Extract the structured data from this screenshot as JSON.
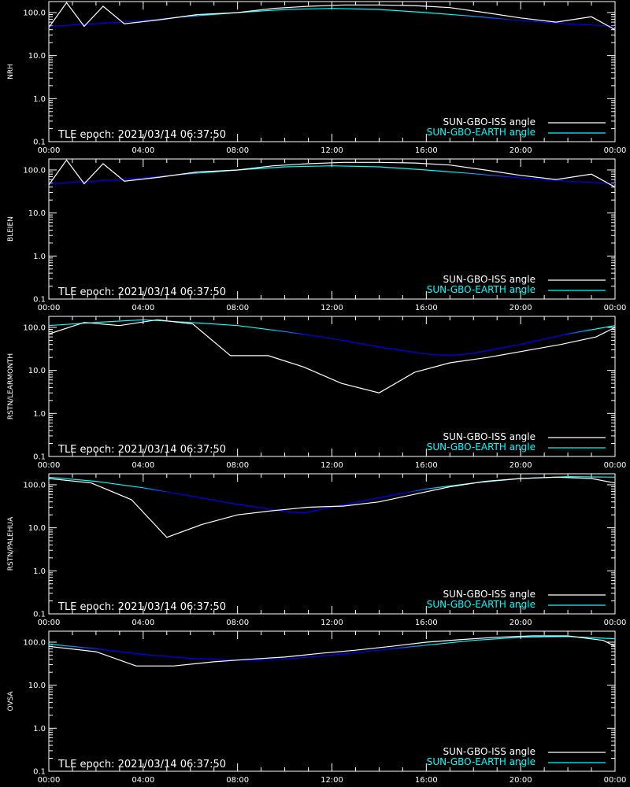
{
  "figure": {
    "epoch_label": "TLE epoch: 2021/03/14 06:37:50",
    "x_tick_labels": [
      "00:00",
      "04:00",
      "08:00",
      "12:00",
      "16:00",
      "20:00",
      "00:00"
    ],
    "y_tick_labels": [
      "100.0",
      "10.0",
      "1.0",
      "0.1"
    ],
    "colors": {
      "background": "#000000",
      "axes": "#ffffff",
      "iss": "#ffffff",
      "earth_legend": "#00ffff",
      "earth_line_low": "#0000ff",
      "earth_line_high": "#00ffff"
    }
  },
  "chart_data": [
    {
      "type": "line",
      "ylabel": "NRH",
      "xlim": [
        0,
        24
      ],
      "ylim": [
        0.1,
        180
      ],
      "yscale": "log",
      "legend_position": "bottom-right",
      "series": [
        {
          "name": "SUN-GBO-ISS angle",
          "color": "#ffffff",
          "x": [
            0,
            0.75,
            1.5,
            2.3,
            3.2,
            4.7,
            6.3,
            8,
            9.5,
            11,
            12.5,
            14,
            15.5,
            17,
            18.5,
            20,
            21.5,
            23,
            24
          ],
          "y": [
            45,
            170,
            48,
            140,
            55,
            68,
            90,
            100,
            125,
            140,
            150,
            150,
            145,
            130,
            100,
            75,
            60,
            80,
            40
          ]
        },
        {
          "name": "SUN-GBO-EARTH angle",
          "color": "#00ffff",
          "x": [
            0,
            2,
            4,
            6,
            8,
            10,
            12,
            14,
            16,
            18,
            20,
            22,
            24
          ],
          "y": [
            48,
            55,
            65,
            82,
            100,
            118,
            125,
            118,
            100,
            82,
            65,
            55,
            48
          ]
        }
      ]
    },
    {
      "type": "line",
      "ylabel": "BLEIEN",
      "xlim": [
        0,
        24
      ],
      "ylim": [
        0.1,
        180
      ],
      "yscale": "log",
      "legend_position": "bottom-right",
      "series": [
        {
          "name": "SUN-GBO-ISS angle",
          "color": "#ffffff",
          "x": [
            0,
            0.75,
            1.5,
            2.3,
            3.2,
            4.7,
            6.3,
            8,
            9.5,
            11,
            12.5,
            14,
            15.5,
            17,
            18.5,
            20,
            21.5,
            23,
            24
          ],
          "y": [
            45,
            170,
            48,
            140,
            55,
            68,
            90,
            100,
            125,
            140,
            150,
            150,
            145,
            130,
            100,
            75,
            60,
            80,
            40
          ]
        },
        {
          "name": "SUN-GBO-EARTH angle",
          "color": "#00ffff",
          "x": [
            0,
            2,
            4,
            6,
            8,
            10,
            12,
            14,
            16,
            18,
            20,
            22,
            24
          ],
          "y": [
            48,
            55,
            65,
            82,
            100,
            118,
            125,
            118,
            100,
            82,
            65,
            55,
            48
          ]
        }
      ]
    },
    {
      "type": "line",
      "ylabel": "RSTN/LEARMONTH",
      "xlim": [
        0,
        24
      ],
      "ylim": [
        0.1,
        180
      ],
      "yscale": "log",
      "legend_position": "bottom-right",
      "series": [
        {
          "name": "SUN-GBO-ISS angle",
          "color": "#ffffff",
          "x": [
            0,
            1.5,
            3,
            4.6,
            6.1,
            7.7,
            9.3,
            10.8,
            12.4,
            14,
            15.5,
            17,
            18.6,
            20.1,
            21.7,
            23.2,
            24
          ],
          "y": [
            70,
            130,
            110,
            150,
            120,
            22,
            22,
            12,
            5,
            3,
            9,
            15,
            20,
            28,
            40,
            60,
            100
          ]
        },
        {
          "name": "SUN-GBO-EARTH angle",
          "color": "#00ffff",
          "x": [
            0,
            2,
            4,
            6,
            8,
            10,
            12,
            14,
            16,
            17,
            18,
            20,
            22,
            24
          ],
          "y": [
            110,
            130,
            150,
            130,
            110,
            80,
            55,
            35,
            24,
            22,
            25,
            40,
            70,
            110
          ]
        }
      ]
    },
    {
      "type": "line",
      "ylabel": "RSTN/PALEHUA",
      "xlim": [
        0,
        24
      ],
      "ylim": [
        0.1,
        180
      ],
      "yscale": "log",
      "legend_position": "bottom-right",
      "series": [
        {
          "name": "SUN-GBO-ISS angle",
          "color": "#ffffff",
          "x": [
            0,
            1.8,
            3.5,
            5,
            6.5,
            8,
            9.5,
            11,
            12.5,
            14,
            15.5,
            17,
            18.5,
            20,
            21.5,
            23,
            24
          ],
          "y": [
            140,
            110,
            45,
            6,
            12,
            20,
            25,
            30,
            32,
            40,
            60,
            90,
            120,
            140,
            150,
            140,
            110
          ]
        },
        {
          "name": "SUN-GBO-EARTH angle",
          "color": "#00ffff",
          "x": [
            0,
            2,
            4,
            6,
            8,
            10,
            10.8,
            12,
            14,
            16,
            18,
            20,
            22,
            24
          ],
          "y": [
            150,
            120,
            85,
            55,
            35,
            24,
            22,
            30,
            50,
            80,
            110,
            140,
            155,
            150
          ]
        }
      ]
    },
    {
      "type": "line",
      "ylabel": "OVSA",
      "xlim": [
        0,
        24
      ],
      "ylim": [
        0.1,
        180
      ],
      "yscale": "log",
      "legend_position": "bottom-right",
      "series": [
        {
          "name": "SUN-GBO-ISS angle",
          "color": "#ffffff",
          "x": [
            0,
            2,
            3.7,
            5.3,
            7,
            8.5,
            10,
            11.5,
            13,
            14.5,
            16,
            17.5,
            19,
            20.5,
            22,
            23.5,
            24
          ],
          "y": [
            80,
            60,
            28,
            28,
            35,
            40,
            45,
            55,
            65,
            80,
            100,
            115,
            130,
            140,
            140,
            110,
            80
          ]
        },
        {
          "name": "SUN-GBO-EARTH angle",
          "color": "#00ffff",
          "x": [
            0,
            2,
            4,
            6,
            8,
            10,
            12,
            14,
            16,
            18,
            20,
            22,
            24
          ],
          "y": [
            90,
            70,
            52,
            42,
            38,
            40,
            50,
            65,
            85,
            110,
            130,
            135,
            120
          ]
        }
      ]
    }
  ]
}
